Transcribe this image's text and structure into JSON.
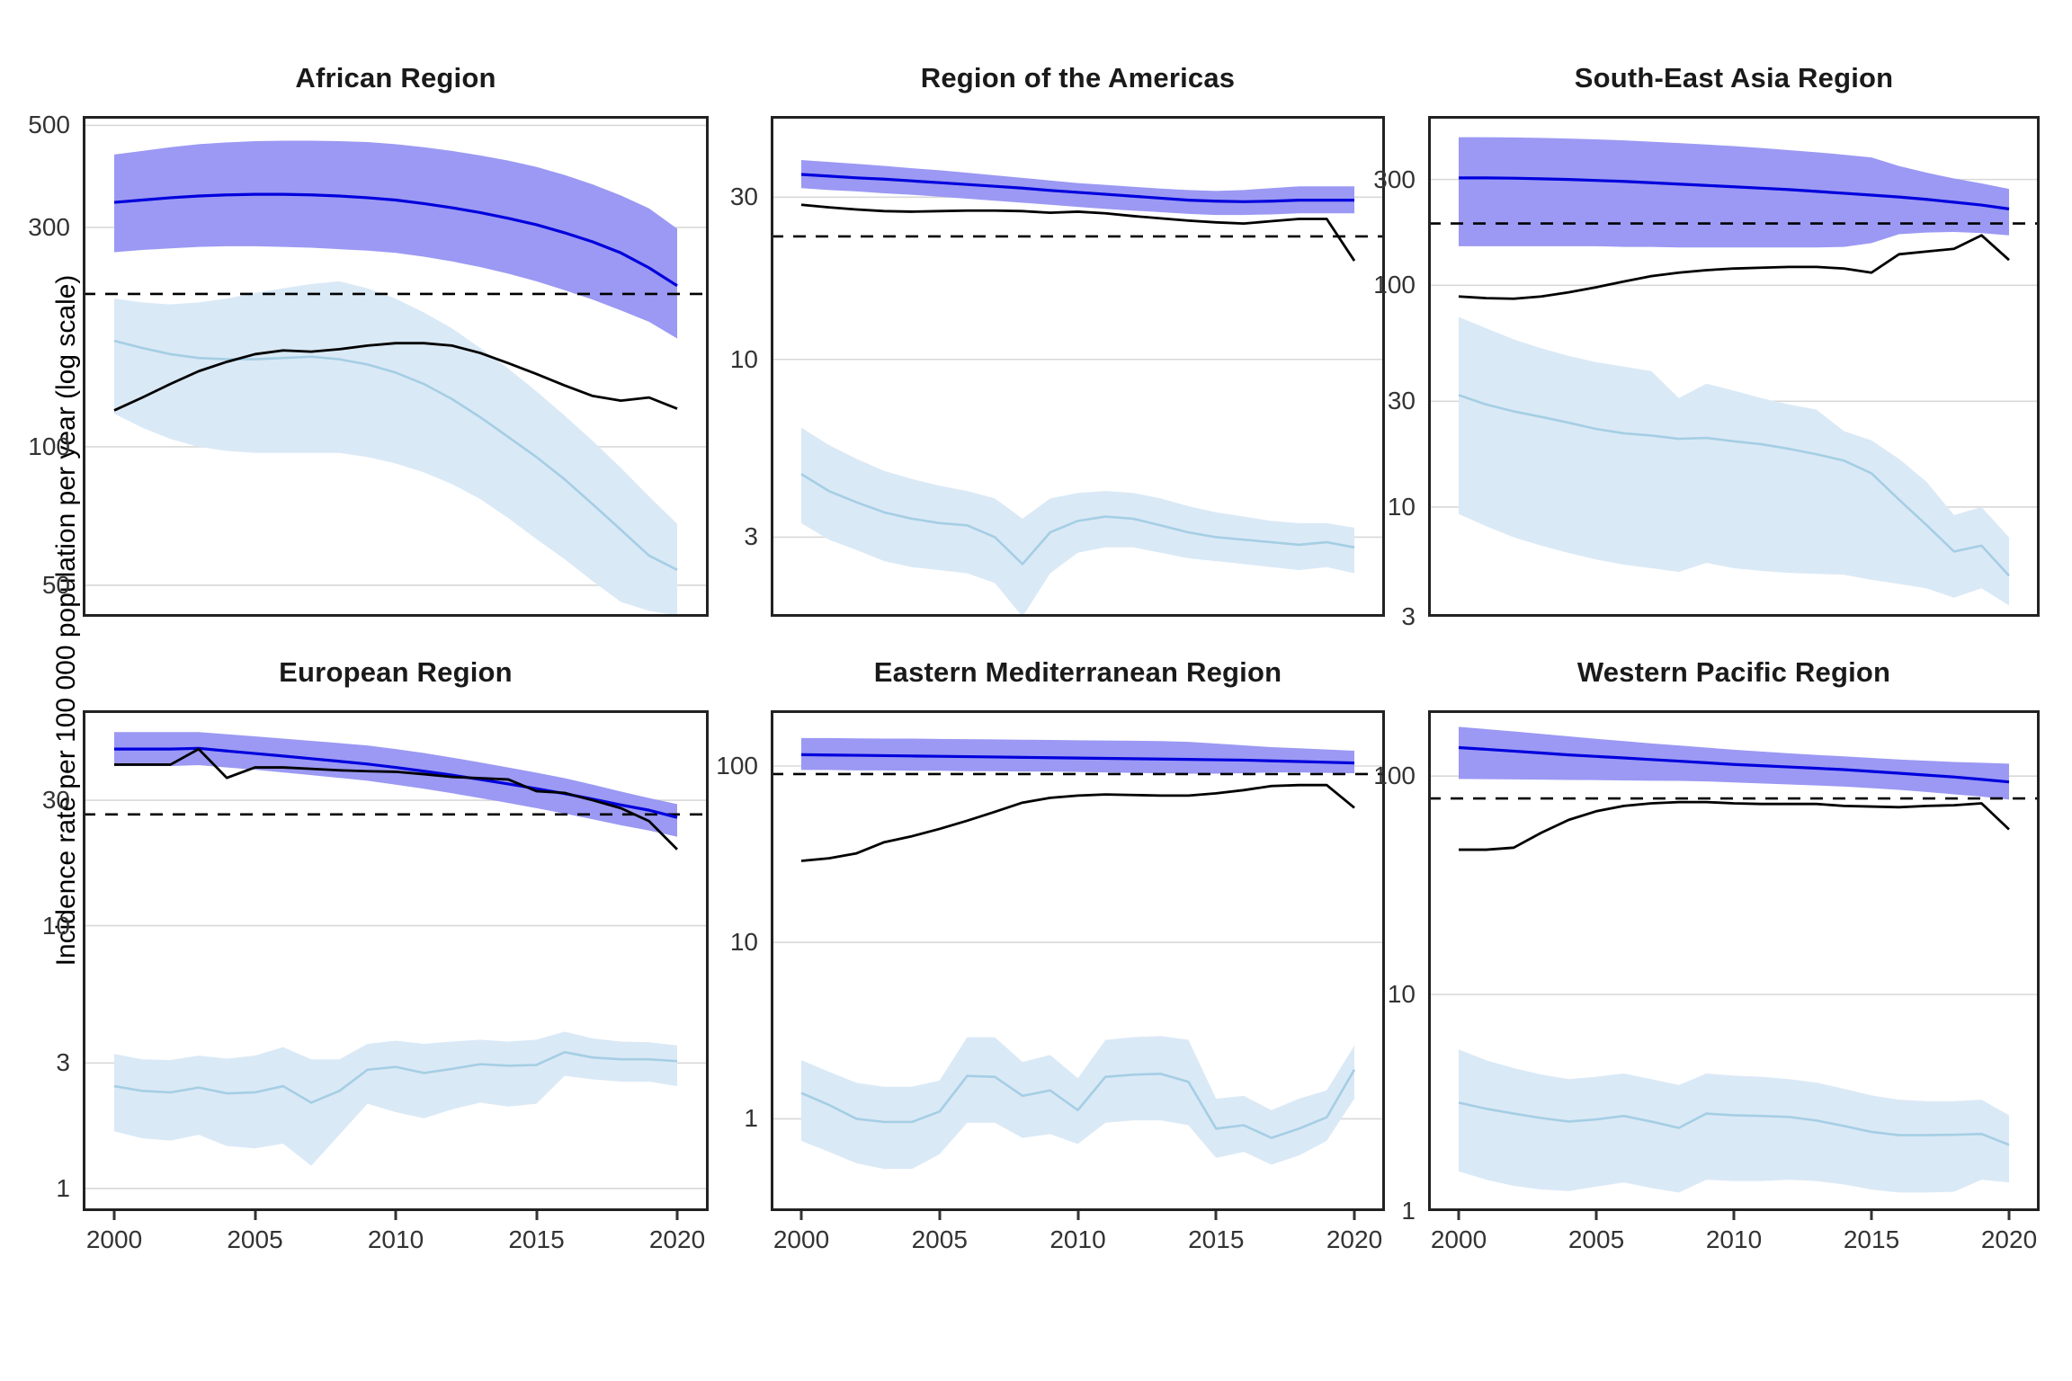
{
  "figure": {
    "y_axis_label": "Incidence rate per 100 000 population per year (log scale)",
    "x_ticks": [
      2000,
      2005,
      2010,
      2015,
      2020
    ],
    "x_years": [
      2000,
      2001,
      2002,
      2003,
      2004,
      2005,
      2006,
      2007,
      2008,
      2009,
      2010,
      2011,
      2012,
      2013,
      2014,
      2015,
      2016,
      2017,
      2018,
      2019,
      2020
    ],
    "colors": {
      "dark_blue_line": "#0000DD",
      "dark_blue_band": "#9B99F3",
      "light_blue_line": "#A5CEE4",
      "light_blue_band": "#DAE9F6",
      "black_line": "#000000",
      "dashed_line": "#000000",
      "gridline": "#D8D8D8",
      "panel_border": "#222222",
      "tick_text": "#333333",
      "title_text": "#1A1A1A"
    }
  },
  "chart_data": [
    {
      "type": "line",
      "title": "African Region",
      "y_scale": "log",
      "y_domain": [
        42.7,
        524
      ],
      "y_ticks": [
        500,
        300,
        100,
        50
      ],
      "series": {
        "dashed_reference": 215,
        "dark_blue": {
          "values": [
            340,
            344,
            348,
            351,
            353,
            354,
            354,
            353,
            351,
            348,
            344,
            338,
            331,
            323,
            314,
            304,
            292,
            279,
            264,
            245,
            224
          ],
          "ci_upper": [
            432,
            440,
            448,
            455,
            459,
            462,
            463,
            463,
            462,
            460,
            455,
            448,
            440,
            430,
            419,
            406,
            390,
            372,
            352,
            330,
            298
          ],
          "ci_lower": [
            265,
            268,
            270,
            272,
            273,
            273,
            272,
            271,
            269,
            267,
            264,
            259,
            253,
            246,
            238,
            229,
            219,
            209,
            198,
            187,
            172
          ]
        },
        "black": {
          "values": [
            120,
            128,
            137,
            146,
            153,
            159,
            162,
            161,
            163,
            166,
            168,
            168,
            166,
            160,
            152,
            144,
            136,
            129,
            126,
            128,
            121
          ]
        },
        "light_blue": {
          "values": [
            170,
            164,
            159,
            156,
            155,
            155,
            156,
            157,
            155,
            151,
            145,
            137,
            127,
            116,
            105,
            95,
            85,
            75,
            66,
            58,
            54
          ],
          "ci_upper": [
            210,
            206,
            204,
            206,
            210,
            216,
            221,
            226,
            229,
            221,
            210,
            196,
            181,
            164,
            148,
            132,
            117,
            103,
            90,
            78,
            68
          ],
          "ci_lower": [
            118,
            110,
            104,
            100,
            98,
            97,
            97,
            97,
            97,
            95,
            92,
            88,
            83,
            77,
            70,
            63,
            57,
            51,
            46,
            44,
            43
          ]
        }
      }
    },
    {
      "type": "line",
      "title": "Region of the Americas",
      "y_scale": "log",
      "y_domain": [
        1.75,
        52
      ],
      "y_ticks": [
        30,
        10,
        3
      ],
      "series": {
        "dashed_reference": 23,
        "dark_blue": {
          "values": [
            35,
            34.6,
            34.2,
            33.9,
            33.5,
            33.1,
            32.7,
            32.3,
            31.9,
            31.4,
            31,
            30.6,
            30.2,
            29.8,
            29.4,
            29.2,
            29.1,
            29.2,
            29.4,
            29.4,
            29.4
          ],
          "ci_upper": [
            38.6,
            38.1,
            37.6,
            37.1,
            36.5,
            36,
            35.4,
            34.8,
            34.2,
            33.6,
            33,
            32.6,
            32.2,
            31.8,
            31.5,
            31.3,
            31.5,
            31.9,
            32.3,
            32.3,
            32.3
          ],
          "ci_lower": [
            31.9,
            31.5,
            31.2,
            30.8,
            30.5,
            30.1,
            29.7,
            29.3,
            28.9,
            28.5,
            28.1,
            27.7,
            27.4,
            27.1,
            26.8,
            26.6,
            26.6,
            26.7,
            26.9,
            26.9,
            26.9
          ]
        },
        "black": {
          "values": [
            28.5,
            28,
            27.6,
            27.3,
            27.2,
            27.3,
            27.4,
            27.4,
            27.3,
            27,
            27.2,
            26.9,
            26.4,
            26,
            25.6,
            25.3,
            25.1,
            25.5,
            25.9,
            25.9,
            19.5
          ]
        },
        "light_blue": {
          "values": [
            4.6,
            4.1,
            3.8,
            3.55,
            3.4,
            3.3,
            3.25,
            3.0,
            2.5,
            3.1,
            3.35,
            3.45,
            3.4,
            3.25,
            3.1,
            3.0,
            2.95,
            2.9,
            2.85,
            2.9,
            2.8
          ],
          "ci_upper": [
            6.3,
            5.6,
            5.1,
            4.7,
            4.45,
            4.25,
            4.1,
            3.9,
            3.4,
            3.9,
            4.05,
            4.1,
            4.05,
            3.9,
            3.7,
            3.55,
            3.45,
            3.35,
            3.3,
            3.3,
            3.2
          ],
          "ci_lower": [
            3.3,
            2.95,
            2.75,
            2.55,
            2.45,
            2.4,
            2.35,
            2.2,
            1.75,
            2.35,
            2.7,
            2.8,
            2.8,
            2.7,
            2.6,
            2.55,
            2.5,
            2.45,
            2.4,
            2.45,
            2.35
          ]
        }
      }
    },
    {
      "type": "line",
      "title": "South-East Asia Region",
      "y_scale": "log",
      "y_domain": [
        3.2,
        580
      ],
      "y_ticks": [
        300,
        100,
        30,
        10,
        3
      ],
      "series": {
        "dashed_reference": 190,
        "dark_blue": {
          "values": [
            305,
            305,
            304,
            302,
            300,
            297,
            294,
            290,
            286,
            282,
            278,
            274,
            270,
            265,
            260,
            255,
            250,
            244,
            237,
            230,
            221
          ],
          "ci_upper": [
            465,
            465,
            464,
            462,
            459,
            455,
            450,
            444,
            438,
            431,
            424,
            416,
            407,
            398,
            388,
            377,
            345,
            322,
            303,
            288,
            272
          ],
          "ci_lower": [
            150,
            150,
            150,
            150,
            150,
            150,
            149,
            149,
            148,
            148,
            148,
            148,
            148,
            148,
            149,
            155,
            170,
            173,
            174,
            172,
            168
          ]
        },
        "black": {
          "values": [
            89,
            87.5,
            87,
            89,
            93,
            98,
            104,
            110,
            114,
            117,
            119,
            120,
            121,
            121,
            119,
            114,
            138,
            142,
            146,
            168,
            130
          ]
        },
        "light_blue": {
          "values": [
            32,
            29,
            27,
            25.5,
            24,
            22.5,
            21.5,
            21,
            20.3,
            20.5,
            19.8,
            19.2,
            18.3,
            17.3,
            16.2,
            14.2,
            10.8,
            8.3,
            6.3,
            6.7,
            4.9
          ],
          "ci_upper": [
            72,
            64,
            57,
            52,
            48,
            45,
            43,
            41,
            31,
            36,
            33.5,
            31,
            29,
            27.5,
            22,
            20,
            16.5,
            13,
            9.2,
            10,
            7.3
          ],
          "ci_lower": [
            9.3,
            8.2,
            7.3,
            6.7,
            6.2,
            5.8,
            5.5,
            5.3,
            5.1,
            5.6,
            5.3,
            5.15,
            5.05,
            5,
            4.95,
            4.7,
            4.5,
            4.3,
            3.9,
            4.3,
            3.6
          ]
        }
      }
    },
    {
      "type": "line",
      "title": "European Region",
      "y_scale": "log",
      "y_domain": [
        0.82,
        66
      ],
      "y_ticks": [
        30,
        10,
        3,
        1
      ],
      "series": {
        "dashed_reference": 26.5,
        "dark_blue": {
          "values": [
            47,
            47,
            47,
            47.3,
            46.2,
            45.2,
            44.2,
            43.2,
            42.2,
            41.2,
            40,
            38.7,
            37.4,
            36,
            34.6,
            33.2,
            31.8,
            30.3,
            28.8,
            27.5,
            25.8
          ],
          "ci_upper": [
            54.5,
            54.5,
            54.5,
            54.5,
            53.5,
            52.5,
            51.5,
            50.5,
            49.5,
            48.5,
            47,
            45.4,
            43.6,
            41.8,
            40,
            38.2,
            36.4,
            34.4,
            32.4,
            30.6,
            29
          ],
          "ci_lower": [
            40.5,
            40.5,
            40.5,
            40.8,
            40,
            39.2,
            38.3,
            37.4,
            36.5,
            35.6,
            34.4,
            33.2,
            31.9,
            30.6,
            29.3,
            28,
            26.7,
            25.4,
            24.1,
            23,
            21.8
          ]
        },
        "black": {
          "values": [
            41,
            41,
            41,
            47,
            36.5,
            40,
            40,
            39.5,
            39,
            38.7,
            38.5,
            37.7,
            36.8,
            36.4,
            36,
            32.5,
            32,
            30,
            28,
            25,
            19.5
          ]
        },
        "light_blue": {
          "values": [
            2.45,
            2.35,
            2.32,
            2.42,
            2.3,
            2.32,
            2.45,
            2.12,
            2.35,
            2.83,
            2.9,
            2.75,
            2.85,
            2.97,
            2.93,
            2.95,
            3.3,
            3.15,
            3.1,
            3.1,
            3.05
          ],
          "ci_upper": [
            3.25,
            3.1,
            3.08,
            3.2,
            3.12,
            3.2,
            3.45,
            3.1,
            3.1,
            3.55,
            3.65,
            3.55,
            3.62,
            3.68,
            3.62,
            3.68,
            3.95,
            3.72,
            3.62,
            3.6,
            3.5
          ],
          "ci_lower": [
            1.65,
            1.55,
            1.52,
            1.6,
            1.45,
            1.42,
            1.48,
            1.22,
            1.6,
            2.1,
            1.95,
            1.85,
            2.0,
            2.12,
            2.05,
            2.1,
            2.68,
            2.6,
            2.55,
            2.55,
            2.45
          ]
        }
      }
    },
    {
      "type": "line",
      "title": "Eastern Mediterranean Region",
      "y_scale": "log",
      "y_domain": [
        0.3,
        207
      ],
      "y_ticks": [
        100,
        10,
        1
      ],
      "series": {
        "dashed_reference": 90,
        "dark_blue": {
          "values": [
            116,
            115.5,
            115,
            114.5,
            114,
            113.5,
            113,
            112.5,
            112,
            111.5,
            111,
            110.5,
            110,
            109.5,
            109,
            108.5,
            108,
            107,
            106,
            105,
            104
          ],
          "ci_upper": [
            144,
            144,
            143.5,
            143,
            143,
            142.5,
            142,
            141.5,
            141,
            140.5,
            140,
            139.5,
            139,
            138.5,
            137,
            134,
            131,
            128,
            126,
            124,
            122
          ],
          "ci_lower": [
            95,
            95,
            94.5,
            94.5,
            94,
            94,
            93.5,
            93.5,
            93,
            93,
            92.5,
            92,
            91.5,
            91,
            90.5,
            90.5,
            91,
            92,
            92,
            91.5,
            91
          ]
        },
        "black": {
          "values": [
            29,
            30,
            32,
            37,
            40,
            44,
            49,
            55,
            62,
            66,
            68,
            69,
            68.5,
            68,
            68,
            70,
            73,
            77,
            78,
            78,
            58
          ]
        },
        "light_blue": {
          "values": [
            1.4,
            1.2,
            1.0,
            0.96,
            0.96,
            1.1,
            1.75,
            1.73,
            1.35,
            1.45,
            1.12,
            1.73,
            1.78,
            1.8,
            1.62,
            0.88,
            0.92,
            0.78,
            0.88,
            1.02,
            1.9
          ],
          "ci_upper": [
            2.15,
            1.85,
            1.6,
            1.52,
            1.52,
            1.65,
            2.9,
            2.9,
            2.1,
            2.3,
            1.7,
            2.8,
            2.9,
            2.95,
            2.8,
            1.3,
            1.35,
            1.12,
            1.3,
            1.45,
            2.6
          ],
          "ci_lower": [
            0.75,
            0.65,
            0.56,
            0.52,
            0.52,
            0.63,
            0.95,
            0.95,
            0.78,
            0.82,
            0.72,
            0.95,
            0.98,
            0.98,
            0.92,
            0.6,
            0.65,
            0.55,
            0.62,
            0.75,
            1.3
          ]
        }
      }
    },
    {
      "type": "line",
      "title": "Western Pacific Region",
      "y_scale": "log",
      "y_domain": [
        1.02,
        200
      ],
      "y_ticks": [
        100,
        10,
        1
      ],
      "series": {
        "dashed_reference": 79,
        "dark_blue": {
          "values": [
            135,
            132.5,
            130,
            127.5,
            125,
            123,
            121,
            119,
            117,
            115,
            113,
            111.5,
            110,
            108.5,
            107,
            105,
            103,
            101,
            99,
            96.5,
            94
          ],
          "ci_upper": [
            168,
            164,
            160,
            156,
            152,
            148,
            144.5,
            141,
            138,
            135,
            132,
            129.5,
            127,
            125,
            123,
            121,
            119,
            117.5,
            116,
            115,
            114
          ],
          "ci_lower": [
            97,
            96.8,
            96.5,
            96.3,
            96,
            95.8,
            95.5,
            95.2,
            95,
            94.5,
            93.5,
            92.5,
            91.5,
            90.5,
            89.5,
            88,
            86.5,
            84.5,
            82.5,
            80.5,
            78
          ]
        },
        "black": {
          "values": [
            46,
            46,
            47,
            55,
            63,
            69,
            73,
            75,
            76,
            76,
            75,
            74.5,
            74.5,
            74.5,
            73,
            72.5,
            72,
            73,
            73.5,
            75,
            57
          ]
        },
        "light_blue": {
          "values": [
            3.2,
            3.0,
            2.85,
            2.72,
            2.62,
            2.68,
            2.78,
            2.62,
            2.45,
            2.85,
            2.8,
            2.78,
            2.75,
            2.65,
            2.5,
            2.35,
            2.27,
            2.27,
            2.28,
            2.3,
            2.05
          ],
          "ci_upper": [
            5.6,
            5.0,
            4.6,
            4.3,
            4.1,
            4.2,
            4.35,
            4.1,
            3.85,
            4.35,
            4.25,
            4.2,
            4.1,
            3.95,
            3.7,
            3.45,
            3.3,
            3.25,
            3.25,
            3.3,
            2.8
          ],
          "ci_lower": [
            1.55,
            1.42,
            1.33,
            1.28,
            1.26,
            1.32,
            1.38,
            1.3,
            1.24,
            1.42,
            1.4,
            1.4,
            1.42,
            1.4,
            1.35,
            1.28,
            1.24,
            1.24,
            1.25,
            1.42,
            1.38
          ]
        }
      }
    }
  ]
}
